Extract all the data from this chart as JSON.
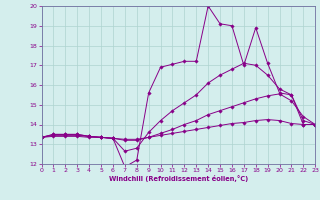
{
  "xlabel": "Windchill (Refroidissement éolien,°C)",
  "xlim": [
    0,
    23
  ],
  "ylim": [
    12,
    20
  ],
  "xticks": [
    0,
    1,
    2,
    3,
    4,
    5,
    6,
    7,
    8,
    9,
    10,
    11,
    12,
    13,
    14,
    15,
    16,
    17,
    18,
    19,
    20,
    21,
    22,
    23
  ],
  "yticks": [
    12,
    13,
    14,
    15,
    16,
    17,
    18,
    19,
    20
  ],
  "bg_color": "#d4eeed",
  "grid_color": "#aed4d0",
  "line_color": "#880088",
  "spine_color": "#7070a0",
  "curves": [
    {
      "x": [
        0,
        1,
        2,
        3,
        4,
        5,
        6,
        7,
        8,
        9,
        10,
        11,
        12,
        13,
        14,
        15,
        16,
        17,
        18,
        19,
        20,
        21,
        22,
        23
      ],
      "y": [
        13.35,
        13.5,
        13.5,
        13.5,
        13.4,
        13.35,
        13.3,
        11.85,
        12.2,
        15.6,
        16.9,
        17.05,
        17.2,
        17.2,
        20.0,
        19.1,
        19.0,
        17.0,
        18.9,
        17.1,
        15.6,
        15.5,
        14.0,
        14.0
      ]
    },
    {
      "x": [
        0,
        1,
        2,
        3,
        4,
        5,
        6,
        7,
        8,
        9,
        10,
        11,
        12,
        13,
        14,
        15,
        16,
        17,
        18,
        19,
        20,
        21,
        22,
        23
      ],
      "y": [
        13.35,
        13.5,
        13.5,
        13.5,
        13.4,
        13.35,
        13.3,
        12.65,
        12.8,
        13.6,
        14.2,
        14.7,
        15.1,
        15.5,
        16.1,
        16.5,
        16.8,
        17.1,
        17.0,
        16.5,
        15.8,
        15.5,
        14.2,
        14.0
      ]
    },
    {
      "x": [
        0,
        1,
        2,
        3,
        4,
        5,
        6,
        7,
        8,
        9,
        10,
        11,
        12,
        13,
        14,
        15,
        16,
        17,
        18,
        19,
        20,
        21,
        22,
        23
      ],
      "y": [
        13.35,
        13.45,
        13.45,
        13.45,
        13.4,
        13.35,
        13.3,
        13.2,
        13.2,
        13.35,
        13.55,
        13.75,
        14.0,
        14.2,
        14.5,
        14.7,
        14.9,
        15.1,
        15.3,
        15.45,
        15.55,
        15.2,
        14.4,
        14.0
      ]
    },
    {
      "x": [
        0,
        1,
        2,
        3,
        4,
        5,
        6,
        7,
        8,
        9,
        10,
        11,
        12,
        13,
        14,
        15,
        16,
        17,
        18,
        19,
        20,
        21,
        22,
        23
      ],
      "y": [
        13.35,
        13.4,
        13.4,
        13.4,
        13.35,
        13.35,
        13.3,
        13.25,
        13.25,
        13.35,
        13.45,
        13.55,
        13.65,
        13.75,
        13.85,
        13.95,
        14.05,
        14.1,
        14.2,
        14.25,
        14.2,
        14.05,
        14.0,
        14.0
      ]
    }
  ]
}
